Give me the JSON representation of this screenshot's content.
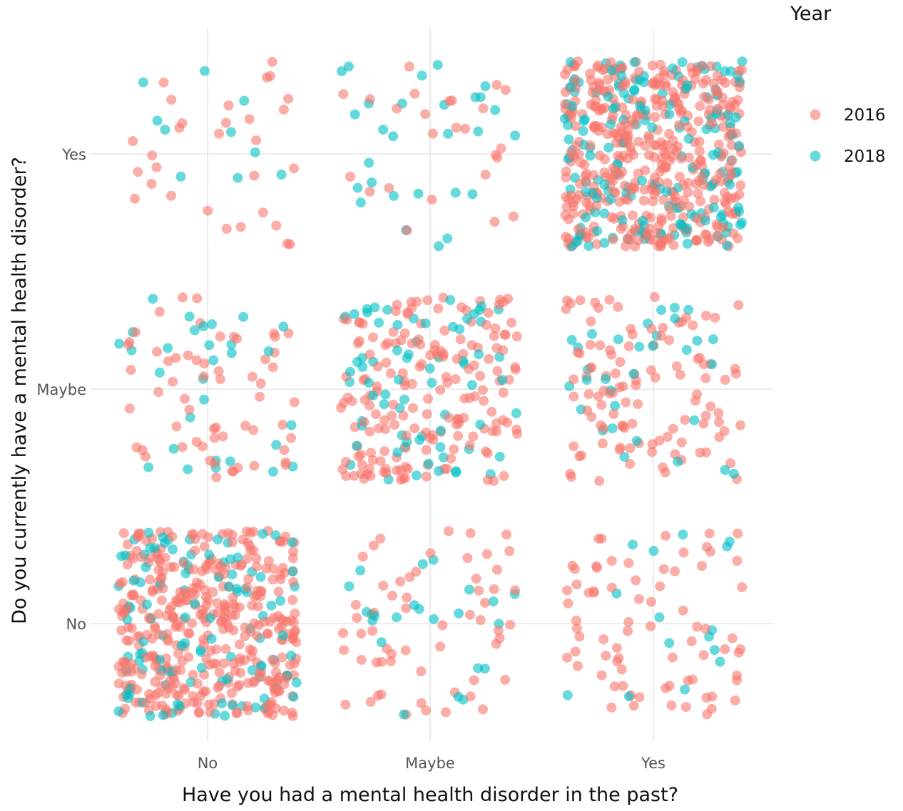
{
  "chart_data": {
    "type": "scatter",
    "subtype": "jittered categorical scatter",
    "xlabel": "Have you had a mental health disorder in the past?",
    "ylabel": "Do you currently have a mental health disorder?",
    "x_categories": [
      "No",
      "Maybe",
      "Yes"
    ],
    "y_categories": [
      "No",
      "Maybe",
      "Yes"
    ],
    "legend": {
      "title": "Year",
      "position": "right"
    },
    "grid": true,
    "series": [
      {
        "name": "2016",
        "color": "#F8766D"
      },
      {
        "name": "2018",
        "color": "#00BFC4"
      }
    ],
    "cells": [
      {
        "x": "No",
        "y": "Yes",
        "counts": {
          "2016": 30,
          "2018": 10
        }
      },
      {
        "x": "Maybe",
        "y": "Yes",
        "counts": {
          "2016": 25,
          "2018": 28
        }
      },
      {
        "x": "Yes",
        "y": "Yes",
        "counts": {
          "2016": 420,
          "2018": 170
        }
      },
      {
        "x": "No",
        "y": "Maybe",
        "counts": {
          "2016": 60,
          "2018": 30
        }
      },
      {
        "x": "Maybe",
        "y": "Maybe",
        "counts": {
          "2016": 180,
          "2018": 70
        }
      },
      {
        "x": "Yes",
        "y": "Maybe",
        "counts": {
          "2016": 110,
          "2018": 32
        }
      },
      {
        "x": "No",
        "y": "No",
        "counts": {
          "2016": 390,
          "2018": 110
        }
      },
      {
        "x": "Maybe",
        "y": "No",
        "counts": {
          "2016": 60,
          "2018": 22
        }
      },
      {
        "x": "Yes",
        "y": "No",
        "counts": {
          "2016": 75,
          "2018": 15
        }
      }
    ]
  }
}
